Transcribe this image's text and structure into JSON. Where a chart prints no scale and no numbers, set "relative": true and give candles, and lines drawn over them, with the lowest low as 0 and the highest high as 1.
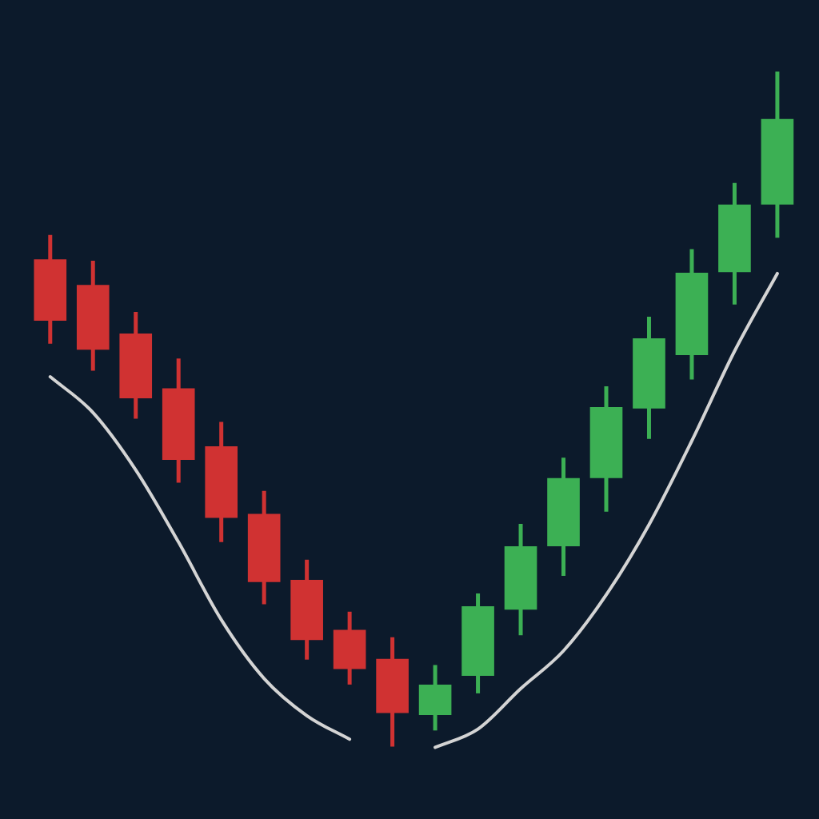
{
  "chart_data": {
    "type": "candlestick",
    "relative": true,
    "categories": [
      null,
      null,
      null,
      null,
      null,
      null,
      null,
      null,
      null,
      null,
      null,
      null,
      null,
      null,
      null,
      null,
      null,
      null
    ],
    "ohlc": [
      [
        0.722,
        0.758,
        0.597,
        0.631
      ],
      [
        0.684,
        0.72,
        0.557,
        0.588
      ],
      [
        0.612,
        0.644,
        0.486,
        0.516
      ],
      [
        0.531,
        0.575,
        0.391,
        0.425
      ],
      [
        0.445,
        0.481,
        0.303,
        0.339
      ],
      [
        0.345,
        0.379,
        0.211,
        0.244
      ],
      [
        0.247,
        0.277,
        0.129,
        0.158
      ],
      [
        0.173,
        0.2,
        0.092,
        0.115
      ],
      [
        0.13,
        0.162,
        0.0,
        0.05
      ],
      [
        0.047,
        0.121,
        0.024,
        0.092
      ],
      [
        0.105,
        0.227,
        0.079,
        0.208
      ],
      [
        0.203,
        0.33,
        0.165,
        0.297
      ],
      [
        0.297,
        0.428,
        0.253,
        0.398
      ],
      [
        0.398,
        0.534,
        0.348,
        0.503
      ],
      [
        0.501,
        0.637,
        0.456,
        0.605
      ],
      [
        0.58,
        0.737,
        0.544,
        0.702
      ],
      [
        0.703,
        0.835,
        0.655,
        0.803
      ],
      [
        0.803,
        1.0,
        0.754,
        0.93
      ]
    ],
    "colors": [
      "#d03232",
      "#d03232",
      "#d03232",
      "#d03232",
      "#d03232",
      "#d03232",
      "#d03232",
      "#d03232",
      "#d03232",
      "#3cb054",
      "#3cb054",
      "#3cb054",
      "#3cb054",
      "#3cb054",
      "#3cb054",
      "#3cb054",
      "#3cb054",
      "#3cb054"
    ],
    "series": [
      {
        "type": "line",
        "color": "#d4d4d4",
        "values": [
          0.548,
          0.495,
          0.41,
          0.303,
          0.188,
          0.101,
          0.046,
          0.011,
          null,
          -0.001,
          0.026,
          0.086,
          0.142,
          0.225,
          0.329,
          0.453,
          0.586,
          0.701
        ]
      }
    ]
  }
}
